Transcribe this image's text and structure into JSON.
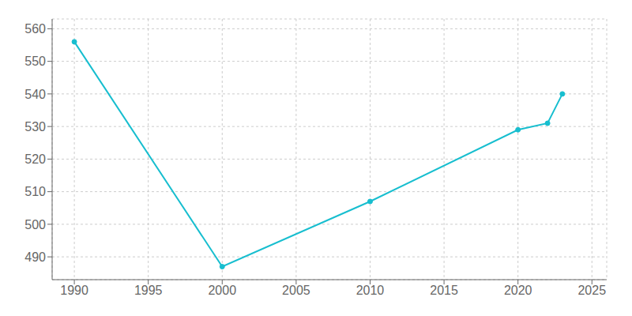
{
  "chart_data": {
    "type": "line",
    "x": [
      1990,
      2000,
      2010,
      2020,
      2022,
      2023
    ],
    "values": [
      556,
      487,
      507,
      529,
      531,
      540
    ],
    "color": "#17BECF",
    "marker": "circle",
    "xlim": [
      1988.5,
      2026
    ],
    "xticks": [
      1990,
      1995,
      2000,
      2005,
      2010,
      2015,
      2020,
      2025
    ],
    "ylim": [
      483,
      563
    ],
    "yticks": [
      490,
      500,
      510,
      520,
      530,
      540,
      550,
      560
    ],
    "grid": true
  }
}
